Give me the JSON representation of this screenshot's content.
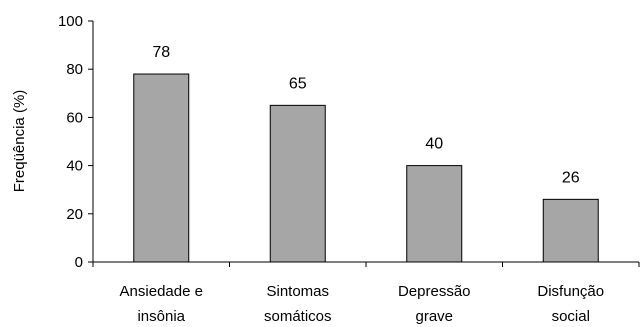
{
  "chart_data": {
    "type": "bar",
    "title": "",
    "xlabel": "",
    "ylabel": "Freqüência (%)",
    "ylim": [
      0,
      100
    ],
    "yticks": [
      0,
      20,
      40,
      60,
      80,
      100
    ],
    "grid": false,
    "legend": "none",
    "categories": [
      [
        "Ansiedade e",
        "insônia"
      ],
      [
        "Sintomas",
        "somáticos"
      ],
      [
        "Depressão",
        "grave"
      ],
      [
        "Disfunção",
        "social"
      ]
    ],
    "values": [
      78,
      65,
      40,
      26
    ],
    "data_labels": [
      "78",
      "65",
      "40",
      "26"
    ],
    "colors": {
      "bar_fill": "#a6a6a6",
      "bar_stroke": "#000000",
      "axis": "#000000"
    }
  }
}
